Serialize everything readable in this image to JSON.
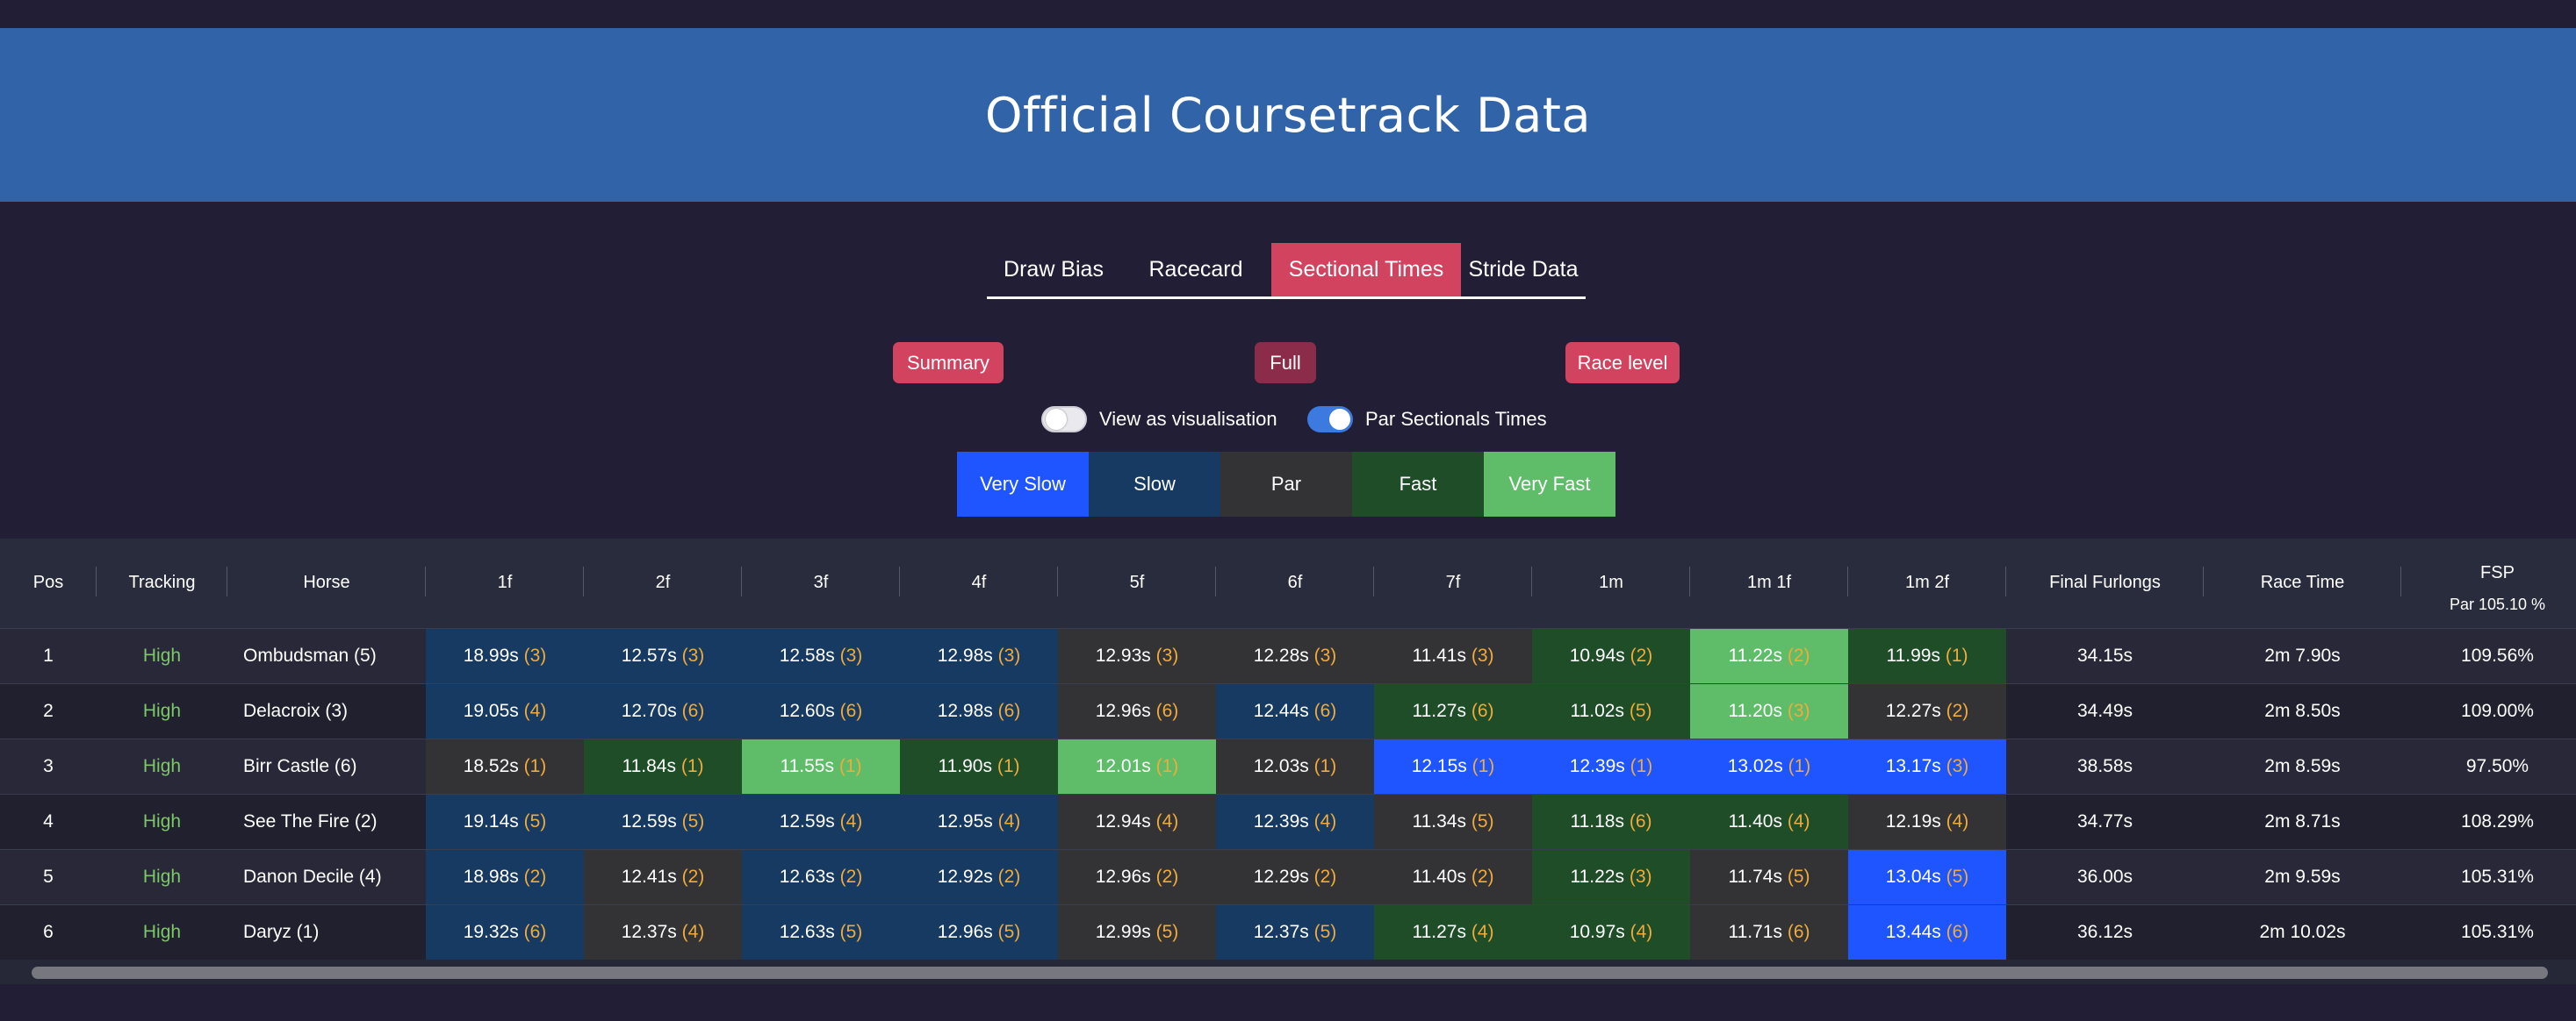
{
  "header": {
    "title": "Official Coursetrack Data"
  },
  "tabs": [
    {
      "label": "Draw Bias"
    },
    {
      "label": "Racecard"
    },
    {
      "label": "Sectional Times",
      "active": true
    },
    {
      "label": "Stride Data"
    }
  ],
  "views": {
    "summary": "Summary",
    "full": "Full",
    "race_level": "Race level"
  },
  "toggles": {
    "visualisation": {
      "label": "View as visualisation",
      "on": false
    },
    "par_sectionals": {
      "label": "Par Sectionals Times",
      "on": true
    }
  },
  "legend": {
    "very_slow": "Very Slow",
    "slow": "Slow",
    "par": "Par",
    "fast": "Fast",
    "very_fast": "Very Fast",
    "colors": {
      "very_slow": "#1f55ff",
      "slow": "#173a62",
      "par": "#333336",
      "fast": "#1e4d28",
      "very_fast": "#5fbd6a"
    }
  },
  "table": {
    "columns": {
      "pos": "Pos",
      "tracking": "Tracking",
      "horse": "Horse",
      "f1": "1f",
      "f2": "2f",
      "f3": "3f",
      "f4": "4f",
      "f5": "5f",
      "f6": "6f",
      "f7": "7f",
      "m1": "1m",
      "m1f1": "1m 1f",
      "m1f2": "1m 2f",
      "final_furlongs": "Final Furlongs",
      "race_time": "Race Time",
      "fsp": "FSP",
      "fsp_par": "Par 105.10 %"
    },
    "rows": [
      {
        "pos": "1",
        "tracking": "High",
        "horse": "Ombudsman (5)",
        "splits": [
          {
            "time": "18.99s",
            "rank": "(3)",
            "rating": "s"
          },
          {
            "time": "12.57s",
            "rank": "(3)",
            "rating": "s"
          },
          {
            "time": "12.58s",
            "rank": "(3)",
            "rating": "s"
          },
          {
            "time": "12.98s",
            "rank": "(3)",
            "rating": "s"
          },
          {
            "time": "12.93s",
            "rank": "(3)",
            "rating": "p"
          },
          {
            "time": "12.28s",
            "rank": "(3)",
            "rating": "p"
          },
          {
            "time": "11.41s",
            "rank": "(3)",
            "rating": "p"
          },
          {
            "time": "10.94s",
            "rank": "(2)",
            "rating": "f"
          },
          {
            "time": "11.22s",
            "rank": "(2)",
            "rating": "vf"
          },
          {
            "time": "11.99s",
            "rank": "(1)",
            "rating": "f"
          }
        ],
        "final_furlongs": "34.15s",
        "race_time": "2m 7.90s",
        "fsp": "109.56%"
      },
      {
        "pos": "2",
        "tracking": "High",
        "horse": "Delacroix (3)",
        "splits": [
          {
            "time": "19.05s",
            "rank": "(4)",
            "rating": "s"
          },
          {
            "time": "12.70s",
            "rank": "(6)",
            "rating": "s"
          },
          {
            "time": "12.60s",
            "rank": "(6)",
            "rating": "s"
          },
          {
            "time": "12.98s",
            "rank": "(6)",
            "rating": "s"
          },
          {
            "time": "12.96s",
            "rank": "(6)",
            "rating": "p"
          },
          {
            "time": "12.44s",
            "rank": "(6)",
            "rating": "s"
          },
          {
            "time": "11.27s",
            "rank": "(6)",
            "rating": "f"
          },
          {
            "time": "11.02s",
            "rank": "(5)",
            "rating": "f"
          },
          {
            "time": "11.20s",
            "rank": "(3)",
            "rating": "vf"
          },
          {
            "time": "12.27s",
            "rank": "(2)",
            "rating": "p"
          }
        ],
        "final_furlongs": "34.49s",
        "race_time": "2m 8.50s",
        "fsp": "109.00%"
      },
      {
        "pos": "3",
        "tracking": "High",
        "horse": "Birr Castle (6)",
        "splits": [
          {
            "time": "18.52s",
            "rank": "(1)",
            "rating": "p"
          },
          {
            "time": "11.84s",
            "rank": "(1)",
            "rating": "f"
          },
          {
            "time": "11.55s",
            "rank": "(1)",
            "rating": "vf"
          },
          {
            "time": "11.90s",
            "rank": "(1)",
            "rating": "f"
          },
          {
            "time": "12.01s",
            "rank": "(1)",
            "rating": "vf"
          },
          {
            "time": "12.03s",
            "rank": "(1)",
            "rating": "p"
          },
          {
            "time": "12.15s",
            "rank": "(1)",
            "rating": "vs"
          },
          {
            "time": "12.39s",
            "rank": "(1)",
            "rating": "vs"
          },
          {
            "time": "13.02s",
            "rank": "(1)",
            "rating": "vs"
          },
          {
            "time": "13.17s",
            "rank": "(3)",
            "rating": "vs"
          }
        ],
        "final_furlongs": "38.58s",
        "race_time": "2m 8.59s",
        "fsp": "97.50%"
      },
      {
        "pos": "4",
        "tracking": "High",
        "horse": "See The Fire (2)",
        "splits": [
          {
            "time": "19.14s",
            "rank": "(5)",
            "rating": "s"
          },
          {
            "time": "12.59s",
            "rank": "(5)",
            "rating": "s"
          },
          {
            "time": "12.59s",
            "rank": "(4)",
            "rating": "s"
          },
          {
            "time": "12.95s",
            "rank": "(4)",
            "rating": "s"
          },
          {
            "time": "12.94s",
            "rank": "(4)",
            "rating": "p"
          },
          {
            "time": "12.39s",
            "rank": "(4)",
            "rating": "s"
          },
          {
            "time": "11.34s",
            "rank": "(5)",
            "rating": "p"
          },
          {
            "time": "11.18s",
            "rank": "(6)",
            "rating": "f"
          },
          {
            "time": "11.40s",
            "rank": "(4)",
            "rating": "f"
          },
          {
            "time": "12.19s",
            "rank": "(4)",
            "rating": "p"
          }
        ],
        "final_furlongs": "34.77s",
        "race_time": "2m 8.71s",
        "fsp": "108.29%"
      },
      {
        "pos": "5",
        "tracking": "High",
        "horse": "Danon Decile (4)",
        "splits": [
          {
            "time": "18.98s",
            "rank": "(2)",
            "rating": "s"
          },
          {
            "time": "12.41s",
            "rank": "(2)",
            "rating": "p"
          },
          {
            "time": "12.63s",
            "rank": "(2)",
            "rating": "s"
          },
          {
            "time": "12.92s",
            "rank": "(2)",
            "rating": "s"
          },
          {
            "time": "12.96s",
            "rank": "(2)",
            "rating": "p"
          },
          {
            "time": "12.29s",
            "rank": "(2)",
            "rating": "p"
          },
          {
            "time": "11.40s",
            "rank": "(2)",
            "rating": "p"
          },
          {
            "time": "11.22s",
            "rank": "(3)",
            "rating": "f"
          },
          {
            "time": "11.74s",
            "rank": "(5)",
            "rating": "p"
          },
          {
            "time": "13.04s",
            "rank": "(5)",
            "rating": "vs"
          }
        ],
        "final_furlongs": "36.00s",
        "race_time": "2m 9.59s",
        "fsp": "105.31%"
      },
      {
        "pos": "6",
        "tracking": "High",
        "horse": "Daryz (1)",
        "splits": [
          {
            "time": "19.32s",
            "rank": "(6)",
            "rating": "s"
          },
          {
            "time": "12.37s",
            "rank": "(4)",
            "rating": "p"
          },
          {
            "time": "12.63s",
            "rank": "(5)",
            "rating": "s"
          },
          {
            "time": "12.96s",
            "rank": "(5)",
            "rating": "s"
          },
          {
            "time": "12.99s",
            "rank": "(5)",
            "rating": "p"
          },
          {
            "time": "12.37s",
            "rank": "(5)",
            "rating": "s"
          },
          {
            "time": "11.27s",
            "rank": "(4)",
            "rating": "f"
          },
          {
            "time": "10.97s",
            "rank": "(4)",
            "rating": "f"
          },
          {
            "time": "11.71s",
            "rank": "(6)",
            "rating": "p"
          },
          {
            "time": "13.44s",
            "rank": "(6)",
            "rating": "vs"
          }
        ],
        "final_furlongs": "36.12s",
        "race_time": "2m 10.02s",
        "fsp": "105.31%"
      }
    ]
  }
}
